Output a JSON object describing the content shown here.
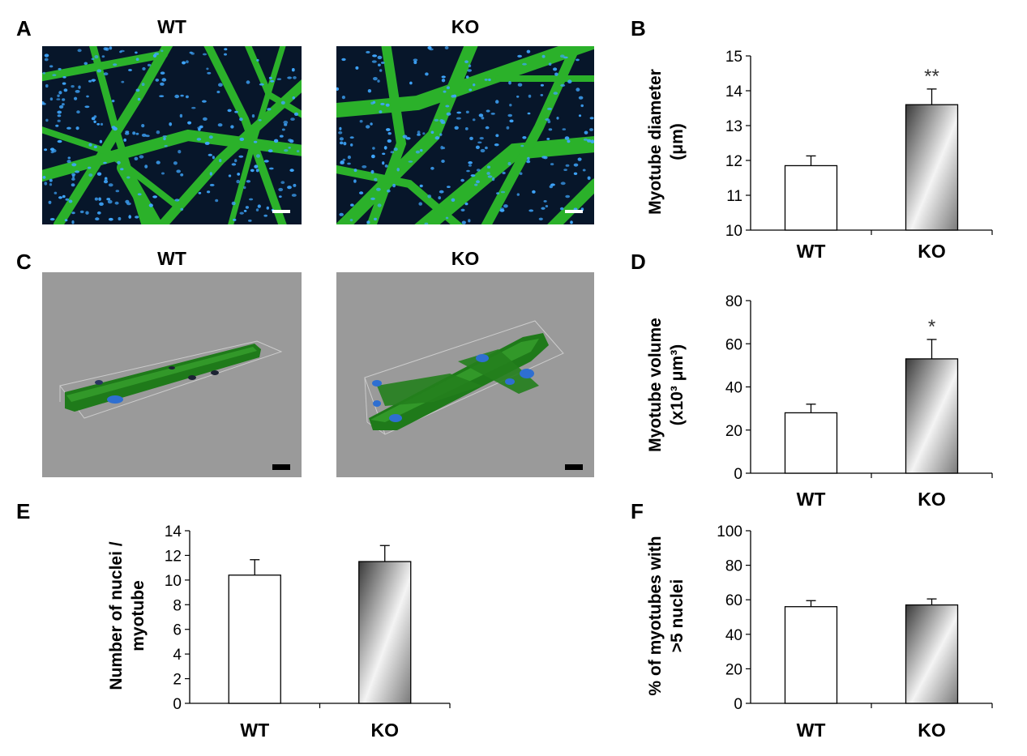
{
  "panels": {
    "A": {
      "letter": "A",
      "titles": [
        "WT",
        "KO"
      ],
      "colors": {
        "background": "#07162a",
        "myotube": "#2fbf2b",
        "nuclei": "#3fa7ff"
      }
    },
    "B": {
      "letter": "B"
    },
    "C": {
      "letter": "C",
      "titles": [
        "WT",
        "KO"
      ],
      "colors": {
        "background": "#9a9a9a",
        "fiber": "#1f7a1a",
        "nuclei": "#2e6fd1"
      }
    },
    "D": {
      "letter": "D"
    },
    "E": {
      "letter": "E"
    },
    "F": {
      "letter": "F"
    }
  },
  "chart_data": [
    {
      "id": "B",
      "type": "bar",
      "categories": [
        "WT",
        "KO"
      ],
      "values": [
        11.85,
        13.6
      ],
      "errors": [
        0.28,
        0.45
      ],
      "significance": [
        "",
        "**"
      ],
      "ylabel": [
        "Myotube diameter",
        "(μm)"
      ],
      "ylim": [
        10,
        15
      ],
      "yticks": [
        10,
        11,
        12,
        13,
        14,
        15
      ],
      "bar_styles": [
        "white",
        "gradient"
      ]
    },
    {
      "id": "D",
      "type": "bar",
      "categories": [
        "WT",
        "KO"
      ],
      "values": [
        28,
        53
      ],
      "errors": [
        4,
        9
      ],
      "significance": [
        "",
        "*"
      ],
      "ylabel": [
        "Myotube volume",
        "(x10³ μm³)"
      ],
      "ylim": [
        0,
        80
      ],
      "yticks": [
        0,
        20,
        40,
        60,
        80
      ],
      "bar_styles": [
        "white",
        "gradient"
      ]
    },
    {
      "id": "E",
      "type": "bar",
      "categories": [
        "WT",
        "KO"
      ],
      "values": [
        10.4,
        11.5
      ],
      "errors": [
        1.25,
        1.3
      ],
      "significance": [
        "",
        ""
      ],
      "ylabel": [
        "Number of nuclei /",
        "myotube"
      ],
      "ylim": [
        0,
        14
      ],
      "yticks": [
        0,
        2,
        4,
        6,
        8,
        10,
        12,
        14
      ],
      "bar_styles": [
        "white",
        "gradient"
      ]
    },
    {
      "id": "F",
      "type": "bar",
      "categories": [
        "WT",
        "KO"
      ],
      "values": [
        56,
        57
      ],
      "errors": [
        3.5,
        3.5
      ],
      "significance": [
        "",
        ""
      ],
      "ylabel": [
        "% of myotubes with",
        ">5 nuclei"
      ],
      "ylim": [
        0,
        100
      ],
      "yticks": [
        0,
        20,
        40,
        60,
        80,
        100
      ],
      "bar_styles": [
        "white",
        "gradient"
      ]
    }
  ]
}
